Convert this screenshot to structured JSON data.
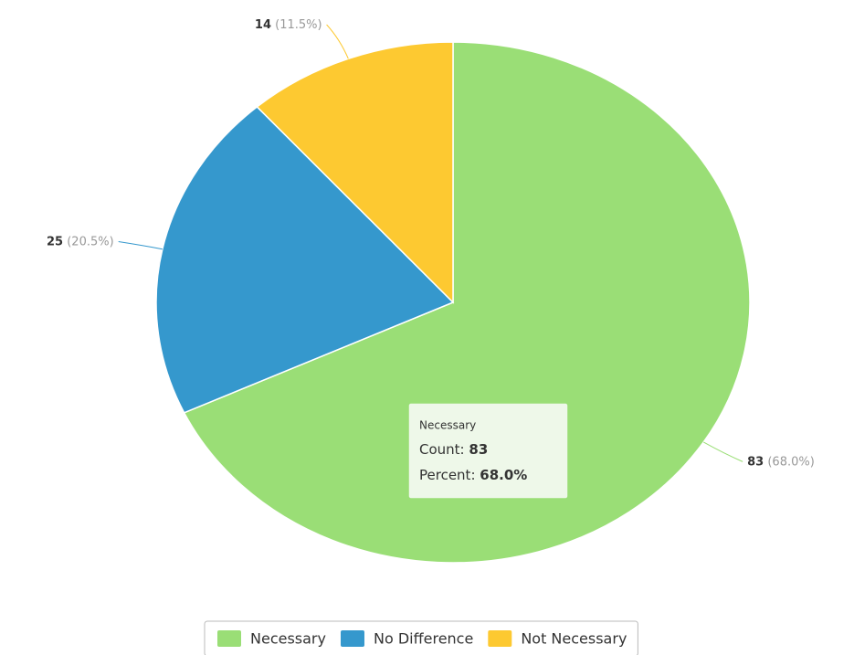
{
  "chart_data": {
    "type": "pie",
    "categories": [
      "Necessary",
      "No Difference",
      "Not Necessary"
    ],
    "values": [
      83,
      25,
      14
    ],
    "percent_labels": [
      "(68.0%)",
      "(20.5%)",
      "(11.5%)"
    ],
    "colors": [
      "#9ade76",
      "#3598cd",
      "#fdc931"
    ],
    "legend": "bottom",
    "tooltip": {
      "title": "Necessary",
      "count_label": "Count:",
      "count": 83,
      "percent_label": "Percent:",
      "percent": "68.0%"
    }
  }
}
